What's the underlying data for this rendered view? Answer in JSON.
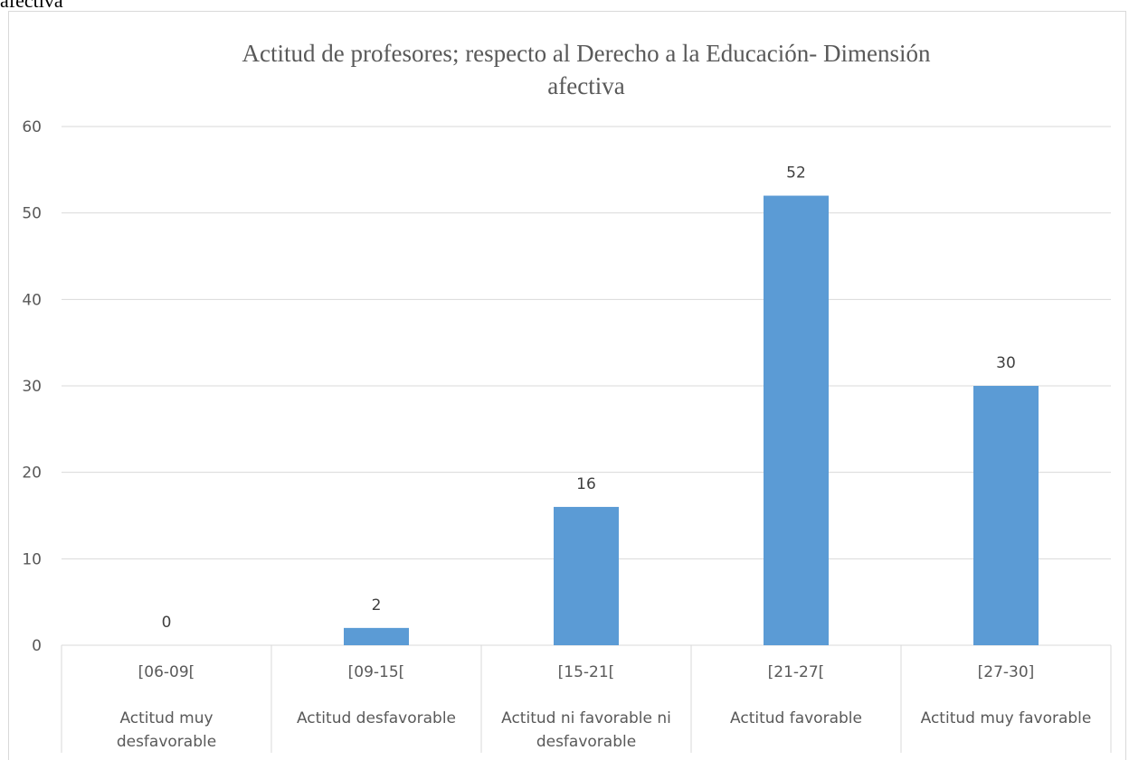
{
  "page": {
    "caption_fragment": "afectiva"
  },
  "chart_data": {
    "type": "bar",
    "title_lines": [
      "Actitud de profesores;  respecto al Derecho a la Educación- Dimensión",
      "afectiva"
    ],
    "categories": [
      {
        "range": "[06-09[",
        "label_lines": [
          "Actitud muy",
          "desfavorable"
        ]
      },
      {
        "range": "[09-15[",
        "label_lines": [
          "Actitud desfavorable"
        ]
      },
      {
        "range": "[15-21[",
        "label_lines": [
          "Actitud ni favorable ni",
          "desfavorable"
        ]
      },
      {
        "range": "[21-27[",
        "label_lines": [
          "Actitud favorable"
        ]
      },
      {
        "range": "[27-30]",
        "label_lines": [
          "Actitud muy favorable"
        ]
      }
    ],
    "values": [
      0,
      2,
      16,
      52,
      30
    ],
    "yticks": [
      0,
      10,
      20,
      30,
      40,
      50,
      60
    ],
    "ylim": [
      0,
      60
    ],
    "grid": true,
    "legend": "none",
    "bar_color": "#5b9bd5"
  }
}
